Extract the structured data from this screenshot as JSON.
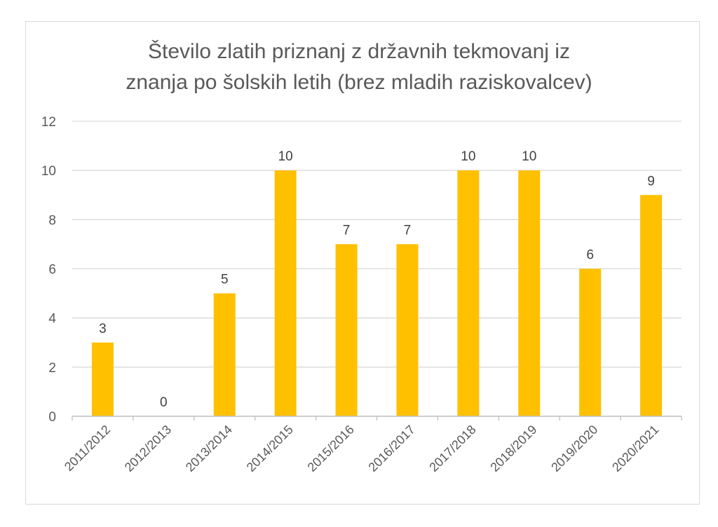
{
  "chart_data": {
    "type": "bar",
    "title_lines": [
      "Število zlatih priznanj z državnih tekmovanj iz",
      "znanja po šolskih letih (brez mladih raziskovalcev)"
    ],
    "categories": [
      "2011/2012",
      "2012/2013",
      "2013/2014",
      "2014/2015",
      "2015/2016",
      "2016/2017",
      "2017/2018",
      "2018/2019",
      "2019/2020",
      "2020/2021"
    ],
    "values": [
      3,
      0,
      5,
      10,
      7,
      7,
      10,
      10,
      6,
      9
    ],
    "data_labels": [
      "3",
      "0",
      "5",
      "10",
      "7",
      "7",
      "10",
      "10",
      "6",
      "9"
    ],
    "ylim": [
      0,
      12
    ],
    "yticks": [
      0,
      2,
      4,
      6,
      8,
      10,
      12
    ],
    "ytick_labels": [
      "0",
      "2",
      "4",
      "6",
      "8",
      "10",
      "12"
    ],
    "xlabel": "",
    "ylabel": "",
    "grid": true,
    "legend": "none",
    "bar_color": "#ffc000"
  }
}
